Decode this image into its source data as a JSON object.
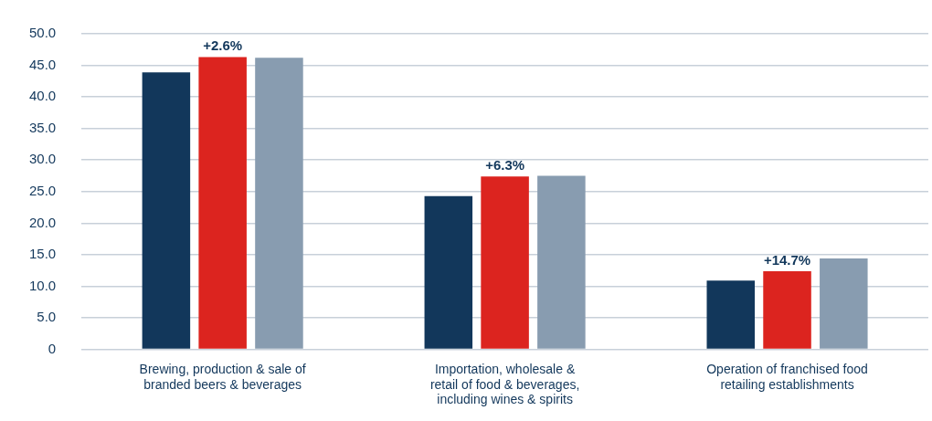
{
  "chart_data": {
    "type": "bar",
    "categories": [
      "Brewing, production & sale of branded beers & beverages",
      "Importation, wholesale & retail of food & beverages, including wines & spirits",
      "Operation of franchised food retailing establishments"
    ],
    "series": [
      {
        "color": "#12375b",
        "values": [
          43.9,
          24.3,
          10.9
        ]
      },
      {
        "color": "#dc241f",
        "values": [
          46.3,
          27.4,
          12.4
        ]
      },
      {
        "color": "#889cb0",
        "values": [
          46.2,
          27.5,
          14.4
        ]
      }
    ],
    "ylim": [
      0,
      50
    ],
    "yticks": [
      {
        "value": 0,
        "label": "0"
      },
      {
        "value": 5,
        "label": "5.0"
      },
      {
        "value": 10,
        "label": "10.0"
      },
      {
        "value": 15,
        "label": "15.0"
      },
      {
        "value": 20,
        "label": "20.0"
      },
      {
        "value": 25,
        "label": "25.0"
      },
      {
        "value": 30,
        "label": "30.0"
      },
      {
        "value": 35,
        "label": "35.0"
      },
      {
        "value": 40,
        "label": "40.0"
      },
      {
        "value": 45,
        "label": "45.0"
      },
      {
        "value": 50,
        "label": "50.0"
      }
    ],
    "grid": "y",
    "legend": false,
    "annotations": [
      {
        "text": "+2.6%",
        "x": "Brewing, production & sale of branded beers & beverages",
        "y": 46.3
      },
      {
        "text": "+6.3%",
        "x": "Importation, wholesale & retail of food & beverages, including wines & spirits",
        "y": 27.4
      },
      {
        "text": "+14.7%",
        "x": "Operation of franchised food retailing establishments",
        "y": 12.4
      }
    ]
  }
}
